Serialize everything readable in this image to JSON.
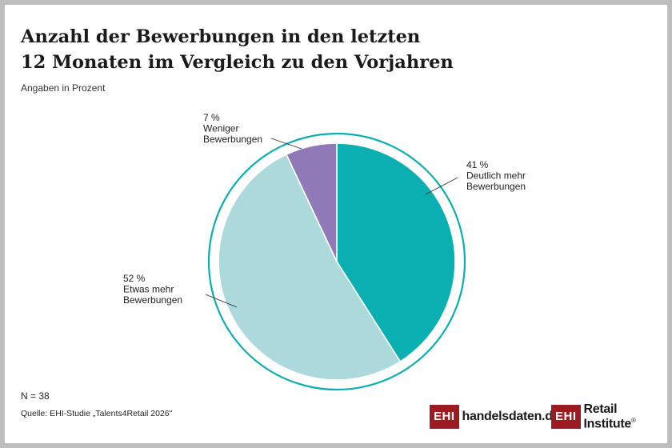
{
  "header": {
    "title_line1": "Anzahl der Bewerbungen in den letzten",
    "title_line2": "12 Monaten im Vergleich zu den Vorjahren",
    "subtitle": "Angaben in Prozent"
  },
  "chart_data": {
    "type": "pie",
    "slices": [
      {
        "label": "Deutlich mehr Bewerbungen",
        "value": 41,
        "value_label": "41 %",
        "label_lines": [
          "Deutlich mehr",
          "Bewerbungen"
        ],
        "color": "#0aafb1"
      },
      {
        "label": "Etwas mehr Bewerbungen",
        "value": 52,
        "value_label": "52 %",
        "label_lines": [
          "Etwas mehr",
          "Bewerbungen"
        ],
        "color": "#acdadc"
      },
      {
        "label": "Weniger Bewerbungen",
        "value": 7,
        "value_label": "7 %",
        "label_lines": [
          "Weniger",
          "Bewerbungen"
        ],
        "color": "#8f79b6"
      }
    ],
    "ring_color": "#0aafb1"
  },
  "footer": {
    "n": "N = 38",
    "source": "Quelle: EHI-Studie „Talents4Retail 2026\""
  },
  "logos": {
    "box_text": "EHI",
    "handelsdaten": "handelsdaten.de",
    "retail_institute": "Retail Institute",
    "registered": "®",
    "brand_color": "#9b1b21"
  }
}
